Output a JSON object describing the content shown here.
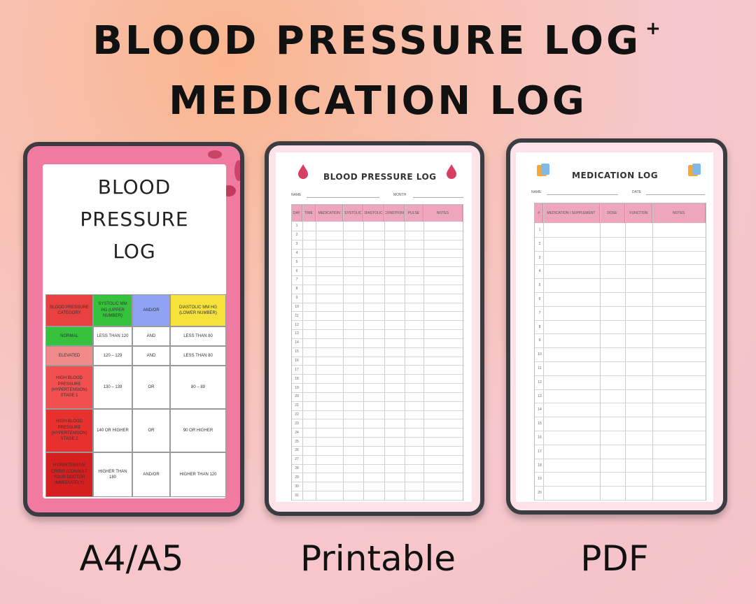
{
  "headline": {
    "line1": "BLOOD PRESSURE LOG",
    "plus": "+",
    "line2": "MEDICATION LOG"
  },
  "captions": {
    "left": "A4/A5",
    "middle": "Printable",
    "right": "PDF"
  },
  "left_tablet": {
    "title_lines": [
      "BLOOD",
      "PRESSURE",
      "LOG"
    ],
    "table_header": [
      "BLOOD PRESSURE CATEGORY",
      "SYSTOLIC MM HG (UPPER NUMBER)",
      "AND/OR",
      "DIASTOLIC MM HG (LOWER NUMBER)"
    ],
    "rows": [
      [
        "NORMAL",
        "LESS THAN 120",
        "AND",
        "LESS THAN 80"
      ],
      [
        "ELEVATED",
        "120 – 129",
        "AND",
        "LESS THAN 80"
      ],
      [
        "HIGH BLOOD PRESSURE (HYPERTENSION) STAGE 1",
        "130 – 139",
        "OR",
        "80 – 89"
      ],
      [
        "HIGH BLOOD PRESSURE (HYPERTENSION) STAGE 2",
        "140 OR HIGHER",
        "OR",
        "90 OR HIGHER"
      ],
      [
        "HYPERTENSIVE CRISIS (CONSULT YOUR DOCTOR IMMEDIATELY)",
        "HIGHER THAN 180",
        "AND/OR",
        "HIGHER THAN 120"
      ]
    ],
    "colors": {
      "header_red": "#e8413f",
      "header_green": "#36c23d",
      "header_blue": "#8fa3f2",
      "header_yellow": "#f6e23a",
      "normal": "#36c23d",
      "elevated": "#f08b8a",
      "stage1": "#f25050",
      "stage2": "#e8312f",
      "crisis": "#d61f1f"
    }
  },
  "bp_log": {
    "title": "BLOOD PRESSURE LOG",
    "fields": [
      "NAME",
      "MONTH"
    ],
    "columns": [
      "DAY",
      "TIME",
      "MEDICATION",
      "SYSTOLIC",
      "DIASTOLIC",
      "CONDITION",
      "PULSE",
      "NOTES"
    ],
    "row_numbers": [
      "1",
      "2",
      "3",
      "4",
      "5",
      "6",
      "7",
      "8",
      "9",
      "10",
      "11",
      "12",
      "13",
      "14",
      "15",
      "16",
      "17",
      "18",
      "19",
      "20",
      "21",
      "22",
      "23",
      "24",
      "25",
      "26",
      "27",
      "28",
      "29",
      "30",
      "31"
    ]
  },
  "med_log": {
    "title": "MEDICATION LOG",
    "fields": [
      "NAME",
      "DATE"
    ],
    "columns": [
      "#",
      "MEDICATION / SUPPLEMENT",
      "DOSE",
      "FUNCTION",
      "NOTES"
    ],
    "row_numbers": [
      "1",
      "2",
      "3",
      "4",
      "5",
      "6",
      "7",
      "8",
      "9",
      "10",
      "11",
      "12",
      "13",
      "14",
      "15",
      "16",
      "17",
      "18",
      "19",
      "20"
    ]
  }
}
